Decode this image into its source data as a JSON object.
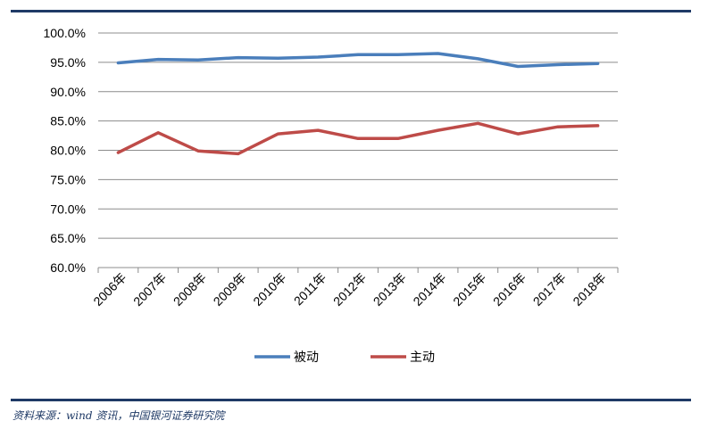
{
  "chart_data": {
    "type": "line",
    "categories": [
      "2006年",
      "2007年",
      "2008年",
      "2009年",
      "2010年",
      "2011年",
      "2012年",
      "2013年",
      "2014年",
      "2015年",
      "2016年",
      "2017年",
      "2018年"
    ],
    "series": [
      {
        "name": "被动",
        "color": "#4a7ebb",
        "values": [
          94.9,
          95.5,
          95.4,
          95.8,
          95.7,
          95.9,
          96.3,
          96.3,
          96.5,
          95.6,
          94.3,
          94.6,
          94.8
        ]
      },
      {
        "name": "主动",
        "color": "#be4b48",
        "values": [
          79.6,
          83.0,
          79.9,
          79.4,
          82.8,
          83.4,
          82.0,
          82.0,
          83.4,
          84.6,
          82.8,
          84.0,
          84.2
        ]
      }
    ],
    "ylim": [
      60,
      100
    ],
    "yticks": [
      "60.0%",
      "65.0%",
      "70.0%",
      "75.0%",
      "80.0%",
      "85.0%",
      "90.0%",
      "95.0%",
      "100.0%"
    ],
    "grid": true,
    "legend": "bottom-center"
  },
  "footer": {
    "source": "资料来源：wind 资讯，中国银河证券研究院"
  }
}
